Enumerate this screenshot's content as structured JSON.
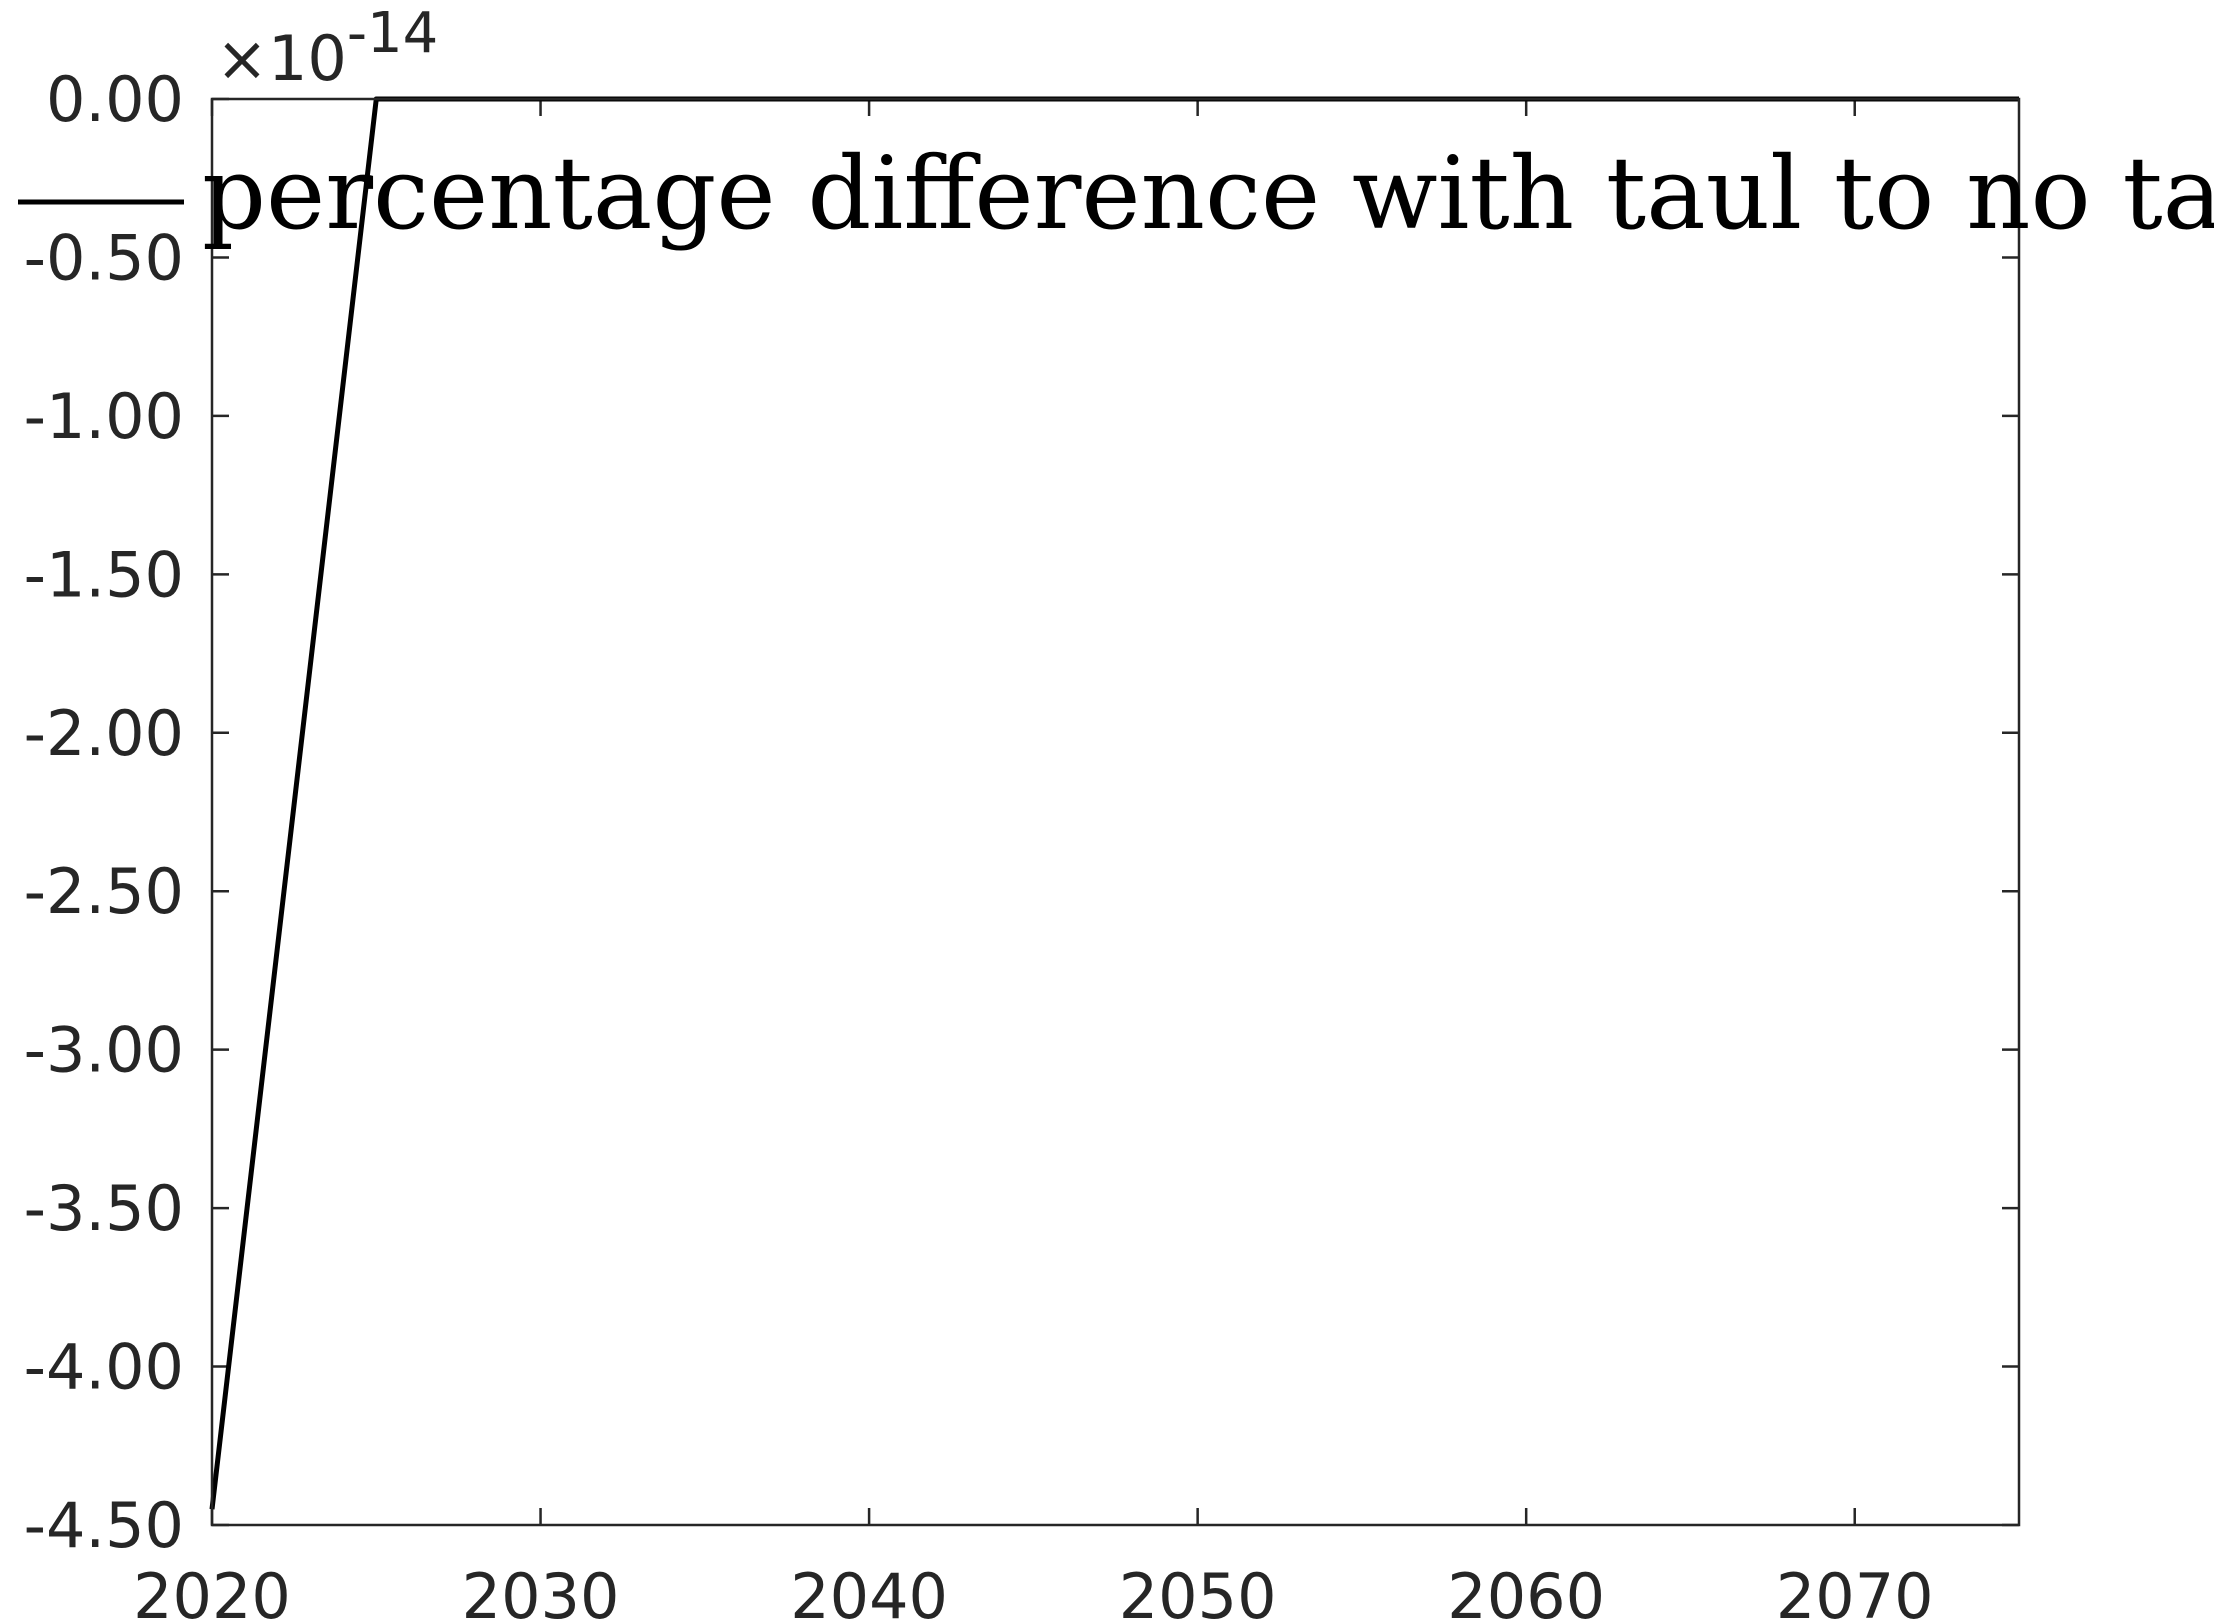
{
  "chart_data": {
    "type": "line",
    "title": "",
    "xlabel": "",
    "ylabel": "",
    "xlim": [
      2020,
      2075
    ],
    "ylim": [
      -4.5,
      0
    ],
    "y_multiplier_label": {
      "base": "×10",
      "exponent": "-14"
    },
    "x_ticks": [
      2020,
      2030,
      2040,
      2050,
      2060,
      2070
    ],
    "x_tick_labels": [
      "2020",
      "2030",
      "2040",
      "2050",
      "2060",
      "2070"
    ],
    "y_ticks": [
      0,
      -0.5,
      -1,
      -1.5,
      -2,
      -2.5,
      -3,
      -3.5,
      -4,
      -4.5
    ],
    "y_tick_labels": [
      "0.00",
      "-0.50",
      "-1.00",
      "-1.50",
      "-2.00",
      "-2.50",
      "-3.00",
      "-3.50",
      "-4.00",
      "-4.50"
    ],
    "grid": false,
    "legend_position": "top",
    "series": [
      {
        "name": "percentage difference with taul to no taul",
        "color": "#000000",
        "x": [
          2020,
          2025,
          2030,
          2035,
          2040,
          2045,
          2050,
          2055,
          2060,
          2065,
          2070,
          2075
        ],
        "y": [
          -4.45,
          0,
          0,
          0,
          0,
          0,
          0,
          0,
          0,
          0,
          0,
          0
        ]
      }
    ]
  }
}
